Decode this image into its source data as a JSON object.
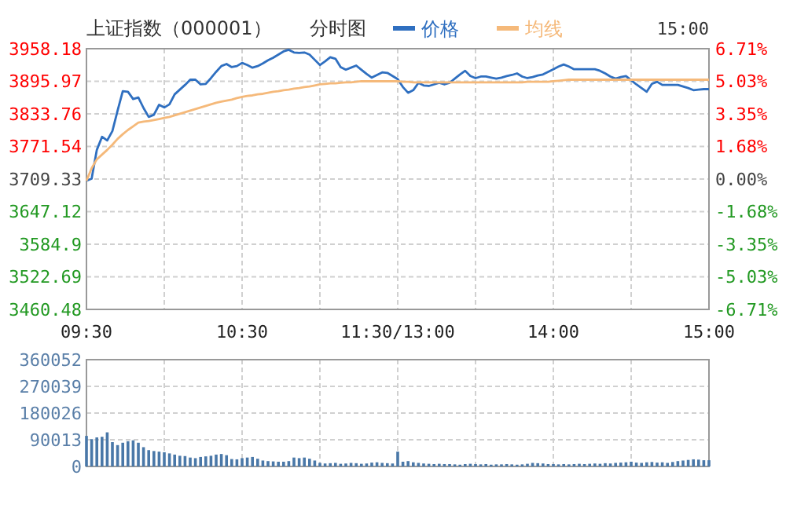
{
  "chart_data": [
    {
      "type": "line",
      "title": "上证指数（000001）",
      "subtitle": "分时图",
      "annotations": [
        "15:00"
      ],
      "legend": "top",
      "grid": true,
      "categories": [
        "09:30",
        null,
        null,
        null,
        null,
        null,
        null,
        null,
        null,
        null,
        null,
        null,
        null,
        null,
        null,
        null,
        null,
        null,
        null,
        null,
        null,
        null,
        null,
        null,
        null,
        null,
        null,
        null,
        null,
        null,
        "10:30",
        null,
        null,
        null,
        null,
        null,
        null,
        null,
        null,
        null,
        null,
        null,
        null,
        null,
        null,
        null,
        null,
        null,
        null,
        null,
        null,
        null,
        null,
        null,
        null,
        null,
        null,
        null,
        null,
        null,
        "11:30/13:00",
        null,
        null,
        null,
        null,
        null,
        null,
        null,
        null,
        null,
        null,
        null,
        null,
        null,
        null,
        null,
        null,
        null,
        null,
        null,
        null,
        null,
        null,
        null,
        null,
        null,
        null,
        null,
        null,
        null,
        "14:00",
        null,
        null,
        null,
        null,
        null,
        null,
        null,
        null,
        null,
        null,
        null,
        null,
        null,
        null,
        null,
        null,
        null,
        null,
        null,
        null,
        null,
        null,
        null,
        null,
        null,
        null,
        null,
        null,
        null,
        "15:00"
      ],
      "ylim": [
        3460.48,
        3958.18
      ],
      "yticks": [
        3460.48,
        3522.69,
        3584.9,
        3647.12,
        3709.33,
        3771.54,
        3833.76,
        3895.97,
        3958.18
      ],
      "y2lim": [
        -6.71,
        6.71
      ],
      "y2ticks": [
        {
          "value": -6.71,
          "label": "-6.71%"
        },
        {
          "value": -5.03,
          "label": "-5.03%"
        },
        {
          "value": -3.35,
          "label": "-3.35%"
        },
        {
          "value": -1.68,
          "label": "-1.68%"
        },
        {
          "value": 0,
          "label": "0.00%"
        },
        {
          "value": 1.68,
          "label": "1.68%"
        },
        {
          "value": 3.35,
          "label": "3.35%"
        },
        {
          "value": 5.03,
          "label": "5.03%"
        },
        {
          "value": 6.71,
          "label": "6.71%"
        }
      ],
      "series": [
        {
          "name": "价格",
          "color": "#2f6fc0",
          "values": [
            3706,
            3710,
            3765,
            3790,
            3783,
            3801,
            3840,
            3877,
            3876,
            3862,
            3865,
            3845,
            3828,
            3832,
            3851,
            3846,
            3852,
            3871,
            3880,
            3889,
            3899,
            3899,
            3890,
            3891,
            3902,
            3914,
            3925,
            3929,
            3923,
            3925,
            3931,
            3927,
            3922,
            3925,
            3930,
            3936,
            3941,
            3947,
            3953,
            3956,
            3951,
            3950,
            3951,
            3947,
            3937,
            3927,
            3934,
            3942,
            3939,
            3923,
            3918,
            3922,
            3926,
            3918,
            3910,
            3903,
            3908,
            3913,
            3912,
            3906,
            3900,
            3885,
            3874,
            3879,
            3893,
            3888,
            3887,
            3890,
            3893,
            3890,
            3893,
            3901,
            3909,
            3916,
            3906,
            3902,
            3905,
            3905,
            3903,
            3901,
            3903,
            3906,
            3908,
            3911,
            3905,
            3902,
            3904,
            3907,
            3909,
            3914,
            3919,
            3924,
            3928,
            3924,
            3919,
            3919,
            3919,
            3919,
            3919,
            3916,
            3911,
            3905,
            3901,
            3904,
            3906,
            3898,
            3890,
            3883,
            3876,
            3891,
            3895,
            3889,
            3889,
            3889,
            3889,
            3886,
            3883,
            3879,
            3880,
            3881,
            3881
          ]
        },
        {
          "name": "均线",
          "color": "#f5b97a",
          "values": [
            3706,
            3730,
            3747,
            3756,
            3765,
            3775,
            3786,
            3795,
            3803,
            3810,
            3817,
            3819,
            3820,
            3822,
            3824,
            3826,
            3828,
            3831,
            3834,
            3837,
            3840,
            3843,
            3846,
            3849,
            3852,
            3855,
            3857,
            3859,
            3861,
            3864,
            3866,
            3868,
            3869,
            3871,
            3872,
            3874,
            3876,
            3877,
            3879,
            3880,
            3882,
            3883,
            3885,
            3886,
            3888,
            3890,
            3891,
            3892,
            3892,
            3893,
            3894,
            3894,
            3895,
            3896,
            3896,
            3896,
            3896,
            3896,
            3896,
            3896,
            3896,
            3895,
            3895,
            3894,
            3894,
            3894,
            3894,
            3894,
            3894,
            3894,
            3894,
            3894,
            3894,
            3894,
            3894,
            3894,
            3894,
            3894,
            3894,
            3894,
            3894,
            3894,
            3894,
            3894,
            3894,
            3895,
            3895,
            3895,
            3895,
            3895,
            3896,
            3897,
            3898,
            3899,
            3899,
            3899,
            3899,
            3899,
            3899,
            3899,
            3899,
            3899,
            3899,
            3899,
            3899,
            3899,
            3899,
            3899,
            3899,
            3899,
            3899,
            3899,
            3899,
            3899,
            3899,
            3899,
            3899,
            3899,
            3899,
            3899,
            3899
          ]
        }
      ]
    },
    {
      "type": "bar",
      "color": "#4a78a8",
      "grid": true,
      "tick_labels": "y",
      "categories": [
        null,
        null,
        null,
        null,
        null,
        null,
        null,
        null,
        null,
        null,
        null,
        null,
        null,
        null,
        null,
        null,
        null,
        null,
        null,
        null,
        null,
        null,
        null,
        null,
        null,
        null,
        null,
        null,
        null,
        null,
        null,
        null,
        null,
        null,
        null,
        null,
        null,
        null,
        null,
        null,
        null,
        null,
        null,
        null,
        null,
        null,
        null,
        null,
        null,
        null,
        null,
        null,
        null,
        null,
        null,
        null,
        null,
        null,
        null,
        null,
        null,
        null,
        null,
        null,
        null,
        null,
        null,
        null,
        null,
        null,
        null,
        null,
        null,
        null,
        null,
        null,
        null,
        null,
        null,
        null,
        null,
        null,
        null,
        null,
        null,
        null,
        null,
        null,
        null,
        null,
        null,
        null,
        null,
        null,
        null,
        null,
        null,
        null,
        null,
        null,
        null,
        null,
        null,
        null,
        null,
        null,
        null,
        null,
        null,
        null,
        null,
        null,
        null,
        null,
        null,
        null,
        null,
        null,
        null,
        null,
        null
      ],
      "ylim": [
        0,
        360052
      ],
      "yticks": [
        0,
        90013,
        180026,
        270039,
        360052
      ],
      "values": [
        103000,
        92000,
        98000,
        100000,
        115000,
        82000,
        72000,
        80000,
        85000,
        88000,
        80000,
        65000,
        55000,
        52000,
        50000,
        48000,
        44000,
        40000,
        36000,
        35000,
        30000,
        28000,
        32000,
        34000,
        36000,
        40000,
        42000,
        38000,
        25000,
        24000,
        28000,
        30000,
        32000,
        26000,
        20000,
        18000,
        17000,
        16000,
        16000,
        18000,
        30000,
        28000,
        30000,
        26000,
        20000,
        12000,
        10000,
        11000,
        12000,
        9000,
        10000,
        12000,
        11000,
        9000,
        10000,
        13000,
        14000,
        12000,
        11000,
        10000,
        50000,
        16000,
        18000,
        14000,
        12000,
        10000,
        9000,
        8000,
        9000,
        8000,
        8000,
        7000,
        6000,
        8000,
        9000,
        8000,
        7000,
        8000,
        6000,
        7000,
        7000,
        8000,
        7000,
        6000,
        7000,
        9000,
        12000,
        11000,
        10000,
        8000,
        8000,
        7000,
        8000,
        7000,
        8000,
        9000,
        8000,
        9000,
        10000,
        9000,
        11000,
        10000,
        12000,
        13000,
        14000,
        16000,
        13000,
        12000,
        14000,
        15000,
        13000,
        14000,
        12000,
        15000,
        18000,
        20000,
        22000,
        24000,
        23000,
        21000,
        21000
      ]
    }
  ]
}
